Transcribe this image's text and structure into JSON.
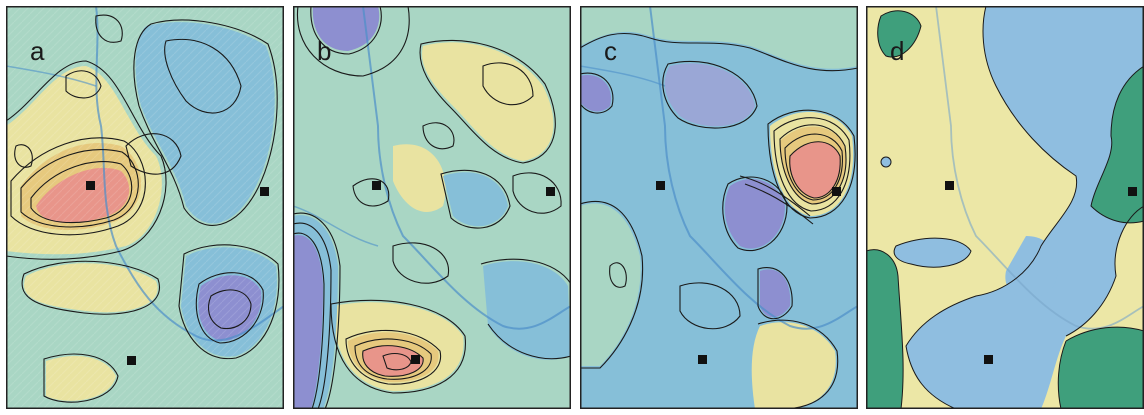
{
  "panels": [
    {
      "id": "a",
      "label": "a"
    },
    {
      "id": "b",
      "label": "b"
    },
    {
      "id": "c",
      "label": "c"
    },
    {
      "id": "d",
      "label": "d"
    }
  ],
  "colors": {
    "high": "#e8958a",
    "mid_high": "#e6c97e",
    "mid": "#e9e3a1",
    "low_mid": "#a9d6c4",
    "low": "#86bfd8",
    "very_low": "#8d8fd0",
    "class_yellow": "#ece7a6",
    "class_blue": "#8fbee0",
    "class_green": "#3f9f7c",
    "contour": "#1a1a1a",
    "river": "#4d8fc9",
    "border": "#222222"
  }
}
